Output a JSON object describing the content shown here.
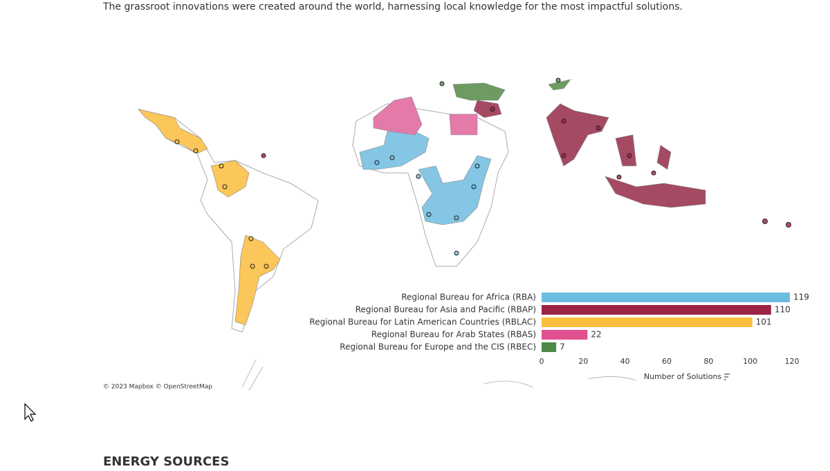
{
  "intro": "The grassroot innovations were created around the world, harnessing local knowledge for the most impactful solutions.",
  "attribution": "© 2023 Mapbox © OpenStreetMap",
  "section_heading": "ENERGY SOURCES",
  "chart_data": {
    "type": "hbar",
    "categories": [
      "Regional Bureau for Africa (RBA)",
      "Regional Bureau for Asia and Pacific (RBAP)",
      "Regional Bureau for Latin American Countries (RBLAC)",
      "Regional Bureau for Arab States (RBAS)",
      "Regional Bureau for Europe and the CIS (RBEC)"
    ],
    "values": [
      119,
      110,
      101,
      22,
      7
    ],
    "colors": [
      "#6bbde0",
      "#9b2343",
      "#fbbf3f",
      "#e1508f",
      "#4e8a47"
    ],
    "xlim": [
      0,
      120
    ],
    "xticks": [
      0,
      20,
      40,
      60,
      80,
      100,
      120
    ],
    "x_label": "Number of Solutions"
  }
}
